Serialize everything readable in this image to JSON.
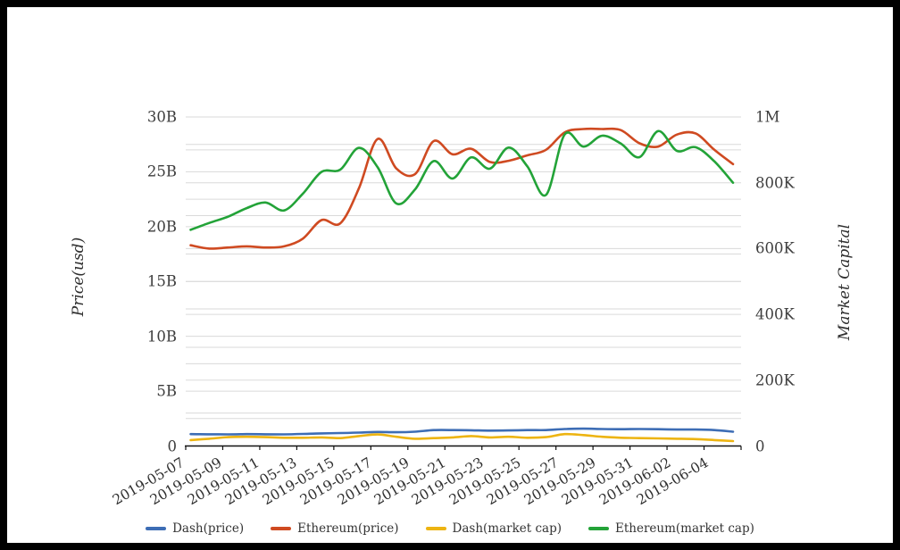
{
  "chart_data": {
    "type": "line",
    "smooth": true,
    "grid": true,
    "legend_position": "bottom",
    "x": [
      "2019-05-07",
      "2019-05-08",
      "2019-05-09",
      "2019-05-10",
      "2019-05-11",
      "2019-05-12",
      "2019-05-13",
      "2019-05-14",
      "2019-05-15",
      "2019-05-16",
      "2019-05-17",
      "2019-05-18",
      "2019-05-19",
      "2019-05-20",
      "2019-05-21",
      "2019-05-22",
      "2019-05-23",
      "2019-05-24",
      "2019-05-25",
      "2019-05-26",
      "2019-05-27",
      "2019-05-28",
      "2019-05-29",
      "2019-05-30",
      "2019-05-31",
      "2019-06-01",
      "2019-06-02",
      "2019-06-03",
      "2019-06-04",
      "2019-06-05"
    ],
    "x_tick_labels": [
      "2019-05-07",
      "2019-05-09",
      "2019-05-11",
      "2019-05-13",
      "2019-05-15",
      "2019-05-17",
      "2019-05-19",
      "2019-05-21",
      "2019-05-23",
      "2019-05-25",
      "2019-05-27",
      "2019-05-29",
      "2019-05-31",
      "2019-06-02",
      "2019-06-04"
    ],
    "left_axis": {
      "title": "Price(usd)",
      "ticks": [
        "0",
        "5B",
        "10B",
        "15B",
        "20B",
        "25B",
        "30B"
      ],
      "min": 0,
      "max": 30,
      "unit": "B",
      "minor_grid_step": 2.5
    },
    "right_axis": {
      "title": "Market Capital",
      "ticks": [
        "0",
        "200K",
        "400K",
        "600K",
        "800K",
        "1M"
      ],
      "min": 0,
      "max": 1000,
      "unit": "K",
      "minor_grid_step": 100
    },
    "series": [
      {
        "name": "Dash(price)",
        "axis": "left",
        "color": "#3d6db5",
        "values": [
          1.08,
          1.07,
          1.06,
          1.08,
          1.07,
          1.06,
          1.1,
          1.15,
          1.18,
          1.22,
          1.28,
          1.25,
          1.3,
          1.45,
          1.45,
          1.43,
          1.4,
          1.42,
          1.45,
          1.45,
          1.55,
          1.58,
          1.55,
          1.53,
          1.55,
          1.53,
          1.5,
          1.5,
          1.45,
          1.3
        ]
      },
      {
        "name": "Ethereum(price)",
        "axis": "left",
        "color": "#cf4a21",
        "values": [
          18.3,
          18.0,
          18.1,
          18.2,
          18.1,
          18.2,
          18.9,
          20.6,
          20.3,
          23.5,
          28.0,
          25.3,
          24.8,
          27.8,
          26.6,
          27.1,
          25.9,
          26.0,
          26.5,
          27.0,
          28.6,
          28.9,
          28.9,
          28.8,
          27.6,
          27.3,
          28.4,
          28.5,
          27.0,
          25.7
        ]
      },
      {
        "name": "Dash(market cap)",
        "axis": "right",
        "color": "#edb412",
        "values": [
          18,
          22,
          27,
          28,
          27,
          25,
          25,
          26,
          24,
          30,
          35,
          28,
          22,
          24,
          26,
          30,
          26,
          28,
          25,
          27,
          36,
          33,
          28,
          25,
          24,
          23,
          22,
          21,
          18,
          15
        ]
      },
      {
        "name": "Ethereum(market cap)",
        "axis": "right",
        "color": "#23a338",
        "values": [
          657,
          678,
          697,
          723,
          740,
          716,
          767,
          833,
          840,
          906,
          847,
          737,
          780,
          866,
          813,
          877,
          843,
          907,
          850,
          763,
          947,
          910,
          943,
          919,
          878,
          957,
          897,
          908,
          865,
          800
        ]
      }
    ],
    "colors": {
      "grid": "#dadada",
      "axis_line": "#111111",
      "tick_text": "#3d3d3d"
    }
  }
}
